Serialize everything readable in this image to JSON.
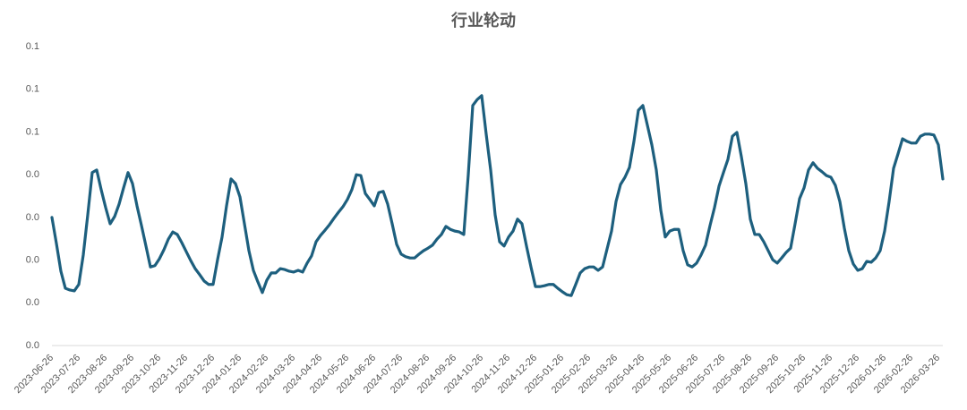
{
  "chart_data": {
    "type": "line",
    "title": "行业轮动",
    "categories": [
      "2023-06-26",
      null,
      null,
      null,
      null,
      null,
      "2023-07-26",
      null,
      null,
      null,
      null,
      null,
      "2023-08-26",
      null,
      null,
      null,
      null,
      null,
      "2023-09-26",
      null,
      null,
      null,
      null,
      null,
      "2023-10-26",
      null,
      null,
      null,
      null,
      null,
      "2023-11-26",
      null,
      null,
      null,
      null,
      null,
      "2023-12-26",
      null,
      null,
      null,
      null,
      null,
      "2024-01-26",
      null,
      null,
      null,
      null,
      null,
      "2024-02-26",
      null,
      null,
      null,
      null,
      null,
      "2024-03-26",
      null,
      null,
      null,
      null,
      null,
      "2024-04-26",
      null,
      null,
      null,
      null,
      null,
      "2024-05-26",
      null,
      null,
      null,
      null,
      null,
      "2024-06-26",
      null,
      null,
      null,
      null,
      null,
      "2024-07-26",
      null,
      null,
      null,
      null,
      null,
      "2024-08-26",
      null,
      null,
      null,
      null,
      null,
      "2024-09-26",
      null,
      null,
      null,
      null,
      null,
      "2024-10-26",
      null,
      null,
      null,
      null,
      null,
      "2024-11-26",
      null,
      null,
      null,
      null,
      null,
      "2024-12-26",
      null,
      null,
      null,
      null,
      null,
      "2025-01-26",
      null,
      null,
      null,
      null,
      null,
      "2025-02-26",
      null,
      null,
      null,
      null,
      null,
      "2025-03-26",
      null,
      null,
      null,
      null,
      null,
      "2025-04-26",
      null,
      null,
      null,
      null,
      null,
      "2025-05-26",
      null,
      null,
      null,
      null,
      null,
      "2025-06-26",
      null,
      null,
      null,
      null,
      null,
      "2025-07-26",
      null,
      null,
      null,
      null,
      null,
      "2025-08-26",
      null,
      null,
      null,
      null,
      null,
      "2025-09-26",
      null,
      null,
      null,
      null,
      null,
      "2025-10-26",
      null,
      null,
      null,
      null,
      null,
      "2025-11-26",
      null,
      null,
      null,
      null,
      null,
      "2025-12-26",
      null,
      null,
      null,
      null,
      null,
      "2026-01-26",
      null,
      null,
      null,
      null,
      null,
      "2026-02-26",
      null,
      null,
      null,
      null,
      null,
      "2026-03-26",
      null
    ],
    "values": [
      0.03,
      0.0239,
      0.0174,
      0.0134,
      0.013,
      0.0128,
      0.0143,
      0.0212,
      0.0306,
      0.0405,
      0.0411,
      0.0365,
      0.0323,
      0.0285,
      0.0302,
      0.0331,
      0.0369,
      0.0405,
      0.0379,
      0.0327,
      0.0281,
      0.0233,
      0.0184,
      0.0187,
      0.0203,
      0.0224,
      0.0249,
      0.0266,
      0.026,
      0.0241,
      0.022,
      0.0199,
      0.018,
      0.0166,
      0.0151,
      0.0143,
      0.0143,
      0.0201,
      0.0254,
      0.0327,
      0.039,
      0.0379,
      0.0348,
      0.0285,
      0.0222,
      0.0176,
      0.0149,
      0.0124,
      0.0153,
      0.017,
      0.017,
      0.018,
      0.0178,
      0.0174,
      0.0172,
      0.0176,
      0.0172,
      0.0193,
      0.021,
      0.0243,
      0.0258,
      0.027,
      0.0283,
      0.0298,
      0.0312,
      0.0325,
      0.0342,
      0.0365,
      0.04,
      0.0398,
      0.0356,
      0.0342,
      0.0327,
      0.0358,
      0.0361,
      0.0331,
      0.0285,
      0.0237,
      0.0214,
      0.0208,
      0.0205,
      0.0205,
      0.0214,
      0.0222,
      0.0228,
      0.0235,
      0.0249,
      0.026,
      0.0279,
      0.0272,
      0.0268,
      0.0266,
      0.026,
      0.04,
      0.0562,
      0.0576,
      0.0585,
      0.0495,
      0.0411,
      0.0306,
      0.0243,
      0.0233,
      0.0254,
      0.0268,
      0.0296,
      0.0285,
      0.0233,
      0.0184,
      0.0138,
      0.0138,
      0.014,
      0.0143,
      0.0143,
      0.0134,
      0.0126,
      0.0119,
      0.0117,
      0.0143,
      0.017,
      0.018,
      0.0184,
      0.0184,
      0.0176,
      0.0184,
      0.0226,
      0.0268,
      0.0337,
      0.0377,
      0.0394,
      0.0417,
      0.0478,
      0.0551,
      0.0562,
      0.0516,
      0.047,
      0.0411,
      0.0317,
      0.0254,
      0.0268,
      0.0272,
      0.0272,
      0.0222,
      0.0189,
      0.0184,
      0.0193,
      0.0212,
      0.0235,
      0.0281,
      0.0323,
      0.0373,
      0.0405,
      0.0436,
      0.049,
      0.0499,
      0.0442,
      0.0379,
      0.0296,
      0.026,
      0.026,
      0.0243,
      0.0222,
      0.0201,
      0.0193,
      0.0205,
      0.0218,
      0.0228,
      0.0285,
      0.0344,
      0.0369,
      0.0411,
      0.0428,
      0.0415,
      0.0407,
      0.0398,
      0.0394,
      0.0375,
      0.0337,
      0.0275,
      0.0222,
      0.0191,
      0.0176,
      0.018,
      0.0197,
      0.0195,
      0.0205,
      0.0222,
      0.0268,
      0.0337,
      0.0415,
      0.0449,
      0.0484,
      0.0478,
      0.0474,
      0.0474,
      0.049,
      0.0495,
      0.0495,
      0.0493,
      0.047,
      0.039
    ],
    "color": "#1d5f7e",
    "ylim": [
      0,
      0.07
    ],
    "yticks": [
      {
        "value": 0,
        "label": "0.0"
      },
      {
        "value": 0.01,
        "label": "0.0"
      },
      {
        "value": 0.02,
        "label": "0.0"
      },
      {
        "value": 0.03,
        "label": "0.0"
      },
      {
        "value": 0.04,
        "label": "0.0"
      },
      {
        "value": 0.05,
        "label": "0.1"
      },
      {
        "value": 0.06,
        "label": "0.1"
      },
      {
        "value": 0.07,
        "label": "0.1"
      }
    ],
    "grid": false
  }
}
